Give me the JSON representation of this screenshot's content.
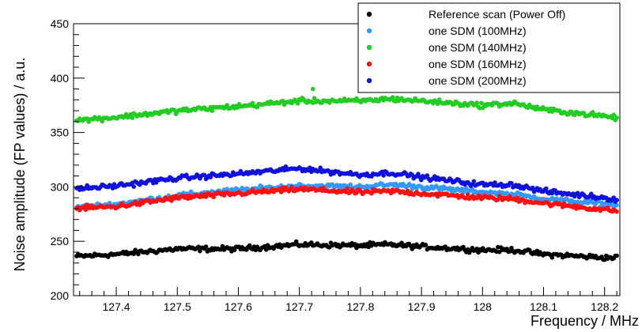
{
  "chart_data": {
    "type": "scatter",
    "title": "",
    "xlabel": "Frequency / MHz",
    "ylabel": "Noise amplitude (FP values) / a.u.",
    "xlim": [
      127.33,
      128.225
    ],
    "ylim": [
      200,
      450
    ],
    "x_ticks": [
      127.4,
      127.5,
      127.6,
      127.7,
      127.8,
      127.9,
      128.0,
      128.1,
      128.2
    ],
    "x_tick_labels": [
      "127.4",
      "127.5",
      "127.6",
      "127.7",
      "127.8",
      "127.9",
      "128",
      "128.1",
      "128.2"
    ],
    "y_ticks": [
      200,
      250,
      300,
      350,
      400,
      450
    ],
    "y_tick_labels": [
      "200",
      "250",
      "300",
      "350",
      "400",
      "450"
    ],
    "grid": false,
    "legend_position": "top-right",
    "x_samples": [
      127.33,
      127.4,
      127.5,
      127.6,
      127.7,
      127.8,
      127.85,
      127.9,
      128.0,
      128.05,
      128.1,
      128.2,
      128.225
    ],
    "series": [
      {
        "name": "Reference scan (Power Off)",
        "color": "#000000",
        "values": [
          236,
          238,
          243,
          243,
          247,
          246,
          247,
          245,
          242,
          242,
          238,
          235,
          235
        ]
      },
      {
        "name": "one SDM (100MHz)",
        "color": "#3399ff",
        "values": [
          281,
          284,
          292,
          297,
          301,
          300,
          302,
          300,
          295,
          293,
          289,
          284,
          283
        ]
      },
      {
        "name": "one SDM (140MHz)",
        "color": "#22cc22",
        "values": [
          361,
          364,
          370,
          374,
          379,
          379,
          381,
          379,
          375,
          377,
          371,
          365,
          363
        ]
      },
      {
        "name": "one SDM (160MHz)",
        "color": "#ff1111",
        "values": [
          280,
          282,
          290,
          294,
          298,
          295,
          296,
          294,
          290,
          289,
          285,
          279,
          278
        ]
      },
      {
        "name": "one SDM (200MHz)",
        "color": "#1111dd",
        "values": [
          298,
          301,
          308,
          312,
          317,
          311,
          313,
          309,
          302,
          302,
          296,
          290,
          288
        ]
      }
    ]
  }
}
